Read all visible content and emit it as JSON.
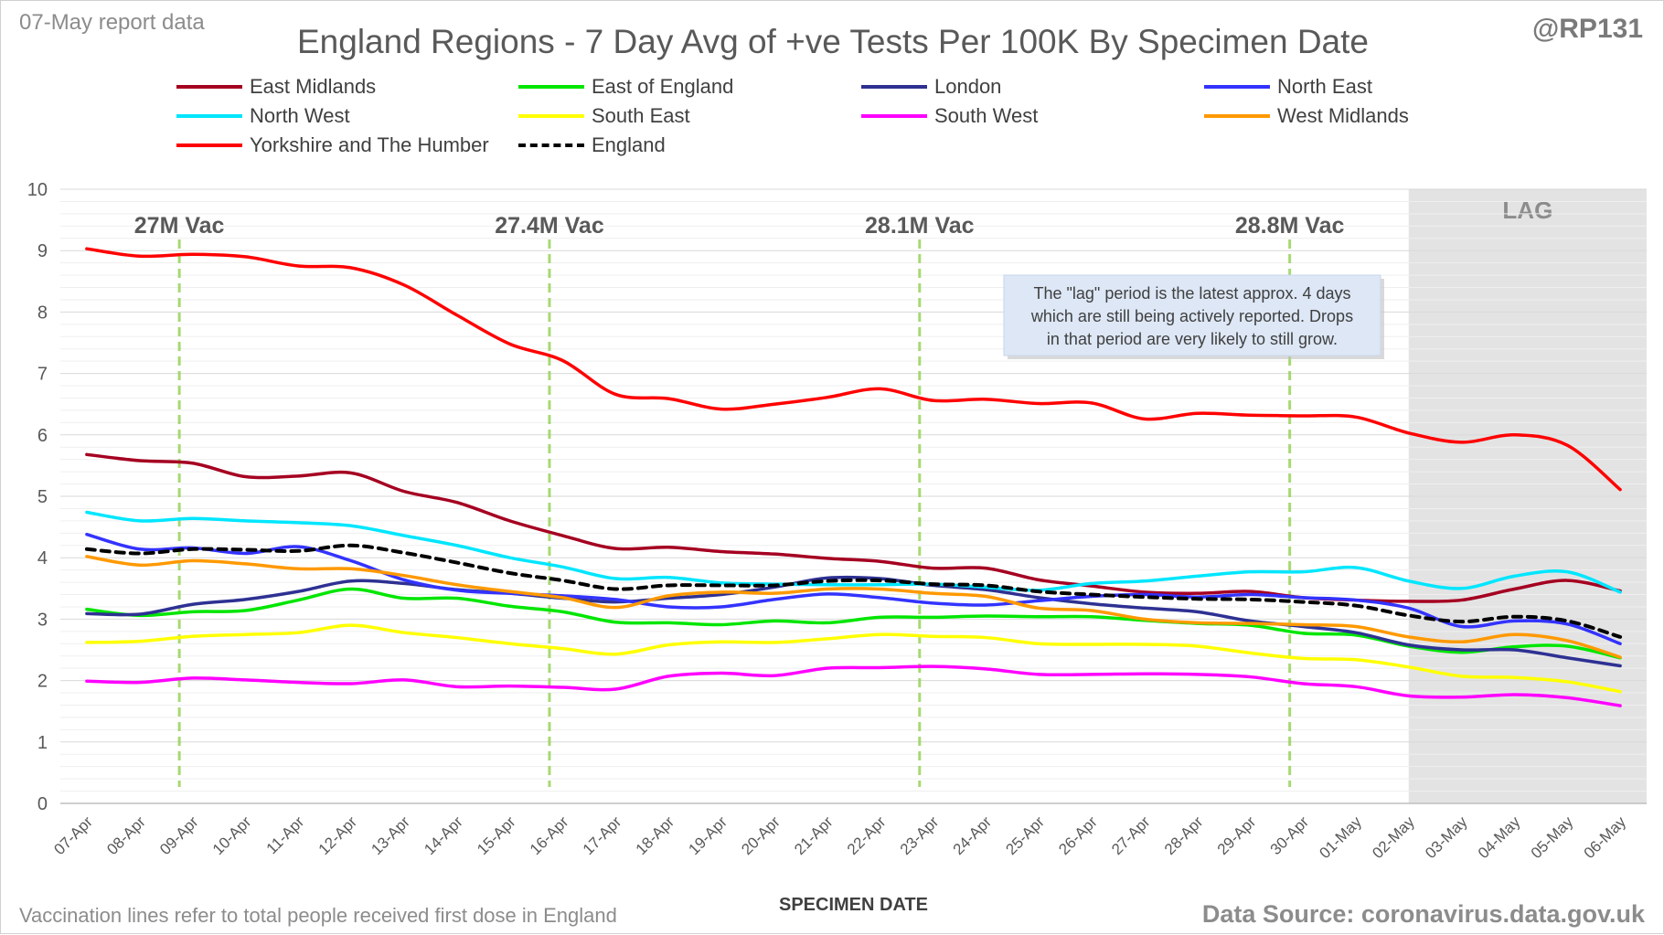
{
  "header": {
    "report_date": "07-May report data",
    "handle": "@RP131",
    "title": "England Regions - 7 Day Avg of +ve Tests Per 100K By Specimen Date"
  },
  "footer": {
    "note": "Vaccination lines refer to total people received first dose in England",
    "source": "Data Source: coronavirus.data.gov.uk"
  },
  "annotation": {
    "lag_label": "LAG",
    "lag_note_lines": [
      "The \"lag\" period is the latest approx. 4 days",
      "which are still being actively reported.  Drops",
      "in that period are very likely to still grow."
    ]
  },
  "colors": {
    "lag_band": "#d9d9d9",
    "vaccination_line": "#92d050",
    "grid": "#e6e6e6",
    "axis_text": "#595959"
  },
  "chart_data": {
    "type": "line",
    "xlabel": "SPECIMEN DATE",
    "ylabel": "",
    "ylim": [
      0,
      10
    ],
    "yticks": [
      "0",
      "1",
      "2",
      "3",
      "4",
      "5",
      "6",
      "7",
      "8",
      "9",
      "10"
    ],
    "grid": true,
    "legend_position": "top",
    "categories": [
      "07-Apr",
      "08-Apr",
      "09-Apr",
      "10-Apr",
      "11-Apr",
      "12-Apr",
      "13-Apr",
      "14-Apr",
      "15-Apr",
      "16-Apr",
      "17-Apr",
      "18-Apr",
      "19-Apr",
      "20-Apr",
      "21-Apr",
      "22-Apr",
      "23-Apr",
      "24-Apr",
      "25-Apr",
      "26-Apr",
      "27-Apr",
      "28-Apr",
      "29-Apr",
      "30-Apr",
      "01-May",
      "02-May",
      "03-May",
      "04-May",
      "05-May",
      "06-May"
    ],
    "lag_period": {
      "from": "02-May",
      "to": "06-May"
    },
    "vaccination_markers": [
      {
        "label": "27M Vac",
        "x": 2.5
      },
      {
        "label": "27.4M Vac",
        "x": 9.5
      },
      {
        "label": "28.1M Vac",
        "x": 16.5
      },
      {
        "label": "28.8M Vac",
        "x": 23.5
      }
    ],
    "series": [
      {
        "name": "East Midlands",
        "color": "#a50021",
        "dash": false,
        "values": [
          5.68,
          5.58,
          5.54,
          5.32,
          5.33,
          5.38,
          5.08,
          4.9,
          4.6,
          4.36,
          4.15,
          4.17,
          4.1,
          4.06,
          3.99,
          3.94,
          3.83,
          3.83,
          3.64,
          3.54,
          3.44,
          3.42,
          3.45,
          3.35,
          3.31,
          3.29,
          3.31,
          3.49,
          3.63,
          3.46
        ]
      },
      {
        "name": "East of England",
        "color": "#00e600",
        "dash": false,
        "values": [
          3.16,
          3.06,
          3.12,
          3.14,
          3.31,
          3.49,
          3.34,
          3.34,
          3.21,
          3.12,
          2.95,
          2.94,
          2.91,
          2.97,
          2.94,
          3.03,
          3.03,
          3.05,
          3.04,
          3.04,
          2.98,
          2.93,
          2.9,
          2.77,
          2.74,
          2.56,
          2.46,
          2.55,
          2.56,
          2.37
        ]
      },
      {
        "name": "London",
        "color": "#2e3192",
        "dash": false,
        "values": [
          3.09,
          3.08,
          3.24,
          3.32,
          3.45,
          3.62,
          3.58,
          3.48,
          3.42,
          3.34,
          3.28,
          3.34,
          3.4,
          3.52,
          3.67,
          3.66,
          3.55,
          3.48,
          3.35,
          3.25,
          3.18,
          3.12,
          2.97,
          2.88,
          2.78,
          2.58,
          2.5,
          2.5,
          2.37,
          2.24
        ]
      },
      {
        "name": "North East",
        "color": "#3333ff",
        "dash": false,
        "values": [
          4.38,
          4.14,
          4.16,
          4.07,
          4.18,
          3.95,
          3.64,
          3.47,
          3.42,
          3.38,
          3.32,
          3.2,
          3.2,
          3.32,
          3.41,
          3.35,
          3.26,
          3.23,
          3.3,
          3.37,
          3.4,
          3.36,
          3.4,
          3.35,
          3.31,
          3.18,
          2.88,
          2.97,
          2.92,
          2.6
        ]
      },
      {
        "name": "North West",
        "color": "#00e6ff",
        "dash": false,
        "values": [
          4.74,
          4.6,
          4.64,
          4.6,
          4.57,
          4.52,
          4.36,
          4.2,
          4.0,
          3.85,
          3.66,
          3.68,
          3.59,
          3.57,
          3.56,
          3.56,
          3.57,
          3.52,
          3.47,
          3.58,
          3.62,
          3.7,
          3.77,
          3.77,
          3.84,
          3.62,
          3.5,
          3.7,
          3.77,
          3.44
        ]
      },
      {
        "name": "South East",
        "color": "#ffff00",
        "dash": false,
        "values": [
          2.62,
          2.64,
          2.72,
          2.75,
          2.78,
          2.9,
          2.78,
          2.7,
          2.6,
          2.52,
          2.43,
          2.58,
          2.63,
          2.62,
          2.68,
          2.75,
          2.72,
          2.7,
          2.6,
          2.59,
          2.59,
          2.56,
          2.45,
          2.36,
          2.34,
          2.22,
          2.07,
          2.05,
          1.98,
          1.82
        ]
      },
      {
        "name": "South West",
        "color": "#ff00ff",
        "dash": false,
        "values": [
          1.99,
          1.97,
          2.04,
          2.01,
          1.97,
          1.95,
          2.01,
          1.9,
          1.91,
          1.89,
          1.86,
          2.07,
          2.12,
          2.08,
          2.2,
          2.21,
          2.23,
          2.19,
          2.1,
          2.1,
          2.11,
          2.1,
          2.06,
          1.95,
          1.9,
          1.75,
          1.73,
          1.77,
          1.72,
          1.59
        ]
      },
      {
        "name": "West Midlands",
        "color": "#ff9900",
        "dash": false,
        "values": [
          4.02,
          3.88,
          3.95,
          3.9,
          3.82,
          3.82,
          3.71,
          3.56,
          3.45,
          3.35,
          3.19,
          3.38,
          3.44,
          3.42,
          3.49,
          3.49,
          3.42,
          3.37,
          3.18,
          3.14,
          3.0,
          2.94,
          2.93,
          2.91,
          2.88,
          2.71,
          2.63,
          2.75,
          2.65,
          2.38
        ]
      },
      {
        "name": "Yorkshire and The Humber",
        "color": "#ff0000",
        "dash": false,
        "values": [
          9.03,
          8.91,
          8.94,
          8.9,
          8.75,
          8.72,
          8.44,
          7.95,
          7.48,
          7.21,
          6.66,
          6.59,
          6.42,
          6.5,
          6.61,
          6.75,
          6.56,
          6.58,
          6.51,
          6.52,
          6.26,
          6.35,
          6.32,
          6.31,
          6.29,
          6.03,
          5.88,
          6.0,
          5.83,
          5.11
        ]
      },
      {
        "name": "England",
        "color": "#000000",
        "dash": true,
        "values": [
          4.14,
          4.07,
          4.14,
          4.13,
          4.11,
          4.2,
          4.08,
          3.92,
          3.75,
          3.63,
          3.49,
          3.55,
          3.55,
          3.55,
          3.62,
          3.63,
          3.57,
          3.55,
          3.45,
          3.4,
          3.36,
          3.33,
          3.32,
          3.28,
          3.22,
          3.06,
          2.96,
          3.04,
          2.97,
          2.71
        ]
      }
    ]
  }
}
